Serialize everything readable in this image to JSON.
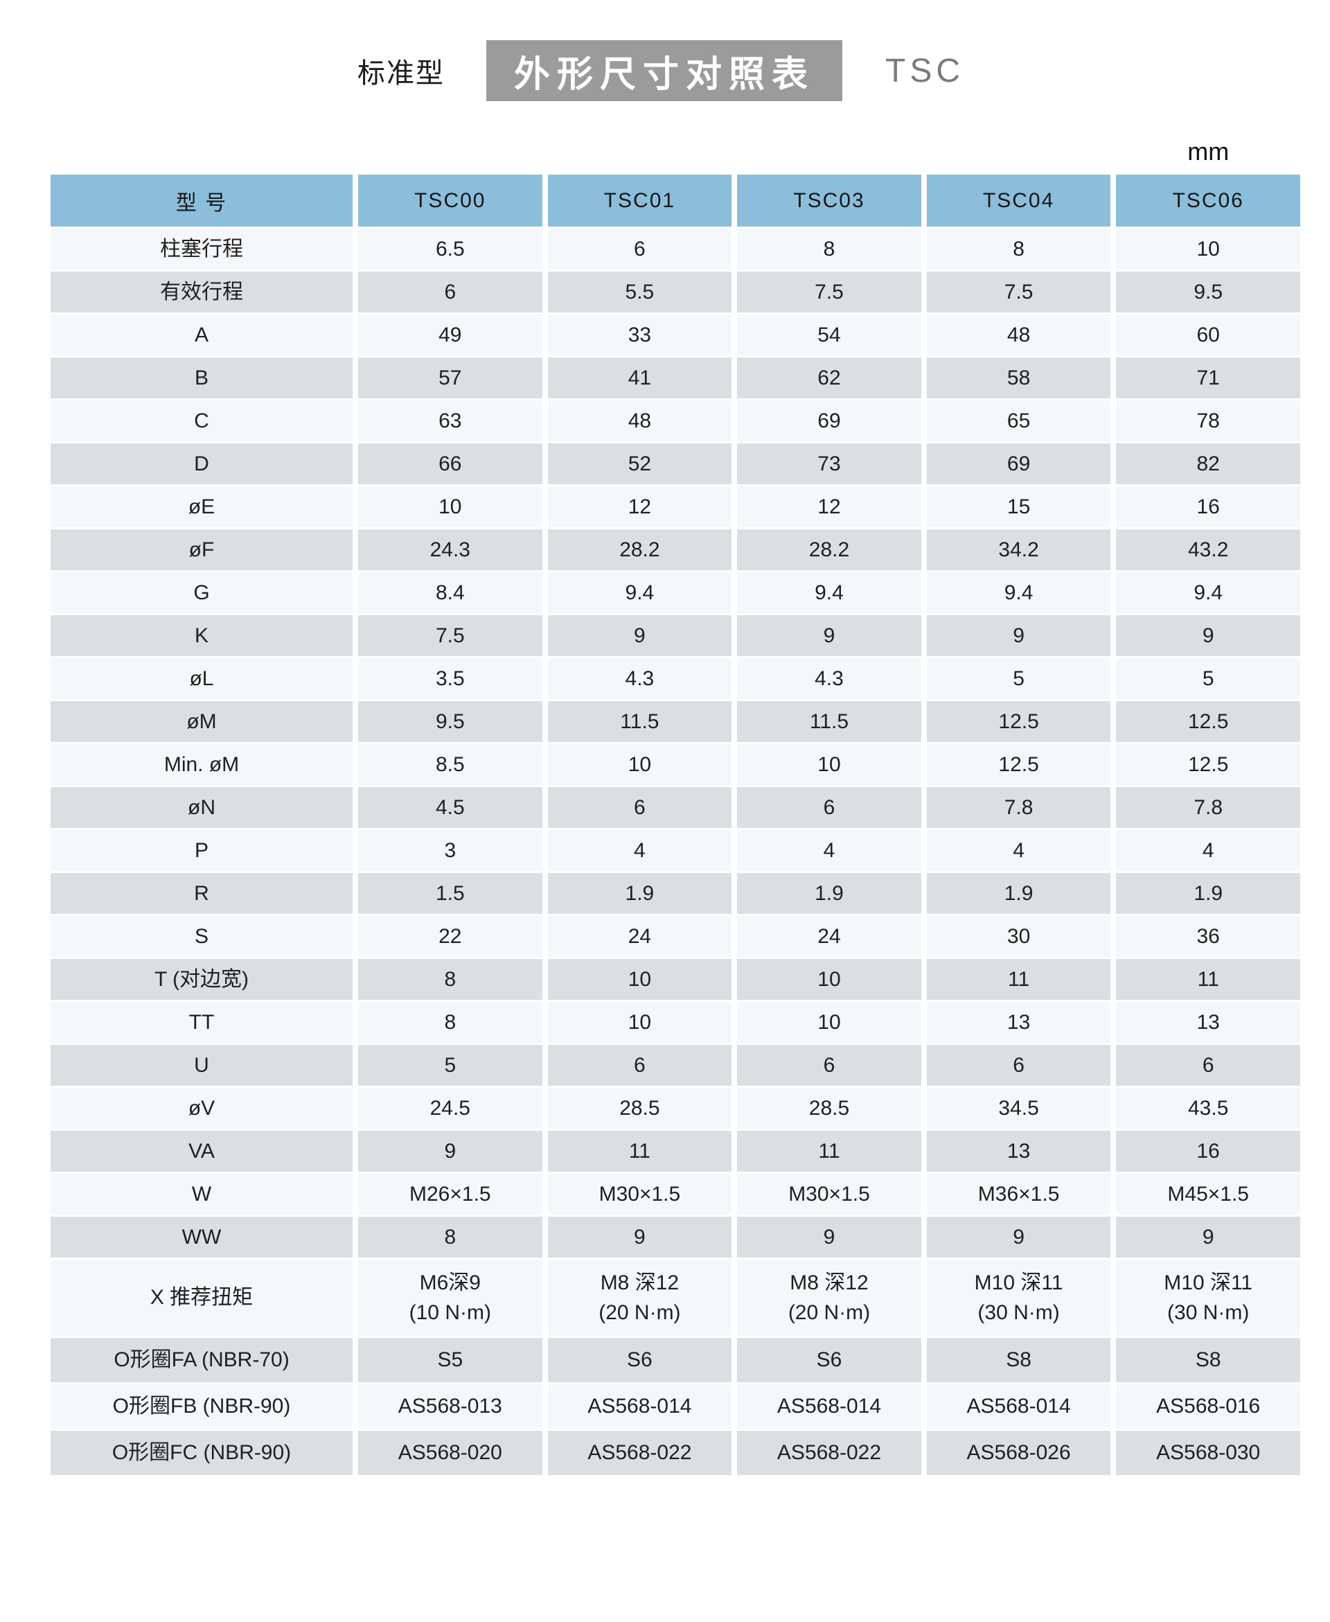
{
  "header": {
    "type_label": "标准型",
    "title": "外形尺寸对照表",
    "series": "TSC"
  },
  "table": {
    "unit": "mm",
    "model_header": "型  号",
    "columns": [
      "TSC00",
      "TSC01",
      "TSC03",
      "TSC04",
      "TSC06"
    ],
    "rows": [
      {
        "label": "柱塞行程",
        "values": [
          "6.5",
          "6",
          "8",
          "8",
          "10"
        ]
      },
      {
        "label": "有效行程",
        "values": [
          "6",
          "5.5",
          "7.5",
          "7.5",
          "9.5"
        ]
      },
      {
        "label": "A",
        "values": [
          "49",
          "33",
          "54",
          "48",
          "60"
        ]
      },
      {
        "label": "B",
        "values": [
          "57",
          "41",
          "62",
          "58",
          "71"
        ]
      },
      {
        "label": "C",
        "values": [
          "63",
          "48",
          "69",
          "65",
          "78"
        ]
      },
      {
        "label": "D",
        "values": [
          "66",
          "52",
          "73",
          "69",
          "82"
        ]
      },
      {
        "label": "øE",
        "values": [
          "10",
          "12",
          "12",
          "15",
          "16"
        ]
      },
      {
        "label": "øF",
        "values": [
          "24.3",
          "28.2",
          "28.2",
          "34.2",
          "43.2"
        ]
      },
      {
        "label": "G",
        "values": [
          "8.4",
          "9.4",
          "9.4",
          "9.4",
          "9.4"
        ]
      },
      {
        "label": "K",
        "values": [
          "7.5",
          "9",
          "9",
          "9",
          "9"
        ]
      },
      {
        "label": "øL",
        "values": [
          "3.5",
          "4.3",
          "4.3",
          "5",
          "5"
        ]
      },
      {
        "label": "øM",
        "values": [
          "9.5",
          "11.5",
          "11.5",
          "12.5",
          "12.5"
        ]
      },
      {
        "label": "Min. øM",
        "values": [
          "8.5",
          "10",
          "10",
          "12.5",
          "12.5"
        ]
      },
      {
        "label": "øN",
        "values": [
          "4.5",
          "6",
          "6",
          "7.8",
          "7.8"
        ]
      },
      {
        "label": "P",
        "values": [
          "3",
          "4",
          "4",
          "4",
          "4"
        ]
      },
      {
        "label": "R",
        "values": [
          "1.5",
          "1.9",
          "1.9",
          "1.9",
          "1.9"
        ]
      },
      {
        "label": "S",
        "values": [
          "22",
          "24",
          "24",
          "30",
          "36"
        ]
      },
      {
        "label": "T (对边宽)",
        "values": [
          "8",
          "10",
          "10",
          "11",
          "11"
        ]
      },
      {
        "label": "TT",
        "values": [
          "8",
          "10",
          "10",
          "13",
          "13"
        ]
      },
      {
        "label": "U",
        "values": [
          "5",
          "6",
          "6",
          "6",
          "6"
        ]
      },
      {
        "label": "øV",
        "values": [
          "24.5",
          "28.5",
          "28.5",
          "34.5",
          "43.5"
        ]
      },
      {
        "label": "VA",
        "values": [
          "9",
          "11",
          "11",
          "13",
          "16"
        ]
      },
      {
        "label": "W",
        "values": [
          "M26×1.5",
          "M30×1.5",
          "M30×1.5",
          "M36×1.5",
          "M45×1.5"
        ]
      },
      {
        "label": "WW",
        "values": [
          "8",
          "9",
          "9",
          "9",
          "9"
        ]
      },
      {
        "label": "X 推荐扭矩",
        "tall": true,
        "values": [
          "M6深9\n(10 N·m)",
          "M8 深12\n(20 N·m)",
          "M8 深12\n(20 N·m)",
          "M10 深11\n(30 N·m)",
          "M10 深11\n(30 N·m)"
        ]
      },
      {
        "label": "O形圈FA (NBR-70)",
        "orow": true,
        "values": [
          "S5",
          "S6",
          "S6",
          "S8",
          "S8"
        ]
      },
      {
        "label": "O形圈FB (NBR-90)",
        "orow": true,
        "values": [
          "AS568-013",
          "AS568-014",
          "AS568-014",
          "AS568-014",
          "AS568-016"
        ]
      },
      {
        "label": "O形圈FC (NBR-90)",
        "orow": true,
        "values": [
          "AS568-020",
          "AS568-022",
          "AS568-022",
          "AS568-026",
          "AS568-030"
        ]
      }
    ]
  },
  "colors": {
    "header_bg": "#8CBEDC",
    "row_light": "#F5F8FA",
    "row_dark": "#DADFE2",
    "title_box_bg": "#9B9B9B",
    "title_box_text": "#FFFFFF",
    "series_text": "#7A7A7A"
  }
}
